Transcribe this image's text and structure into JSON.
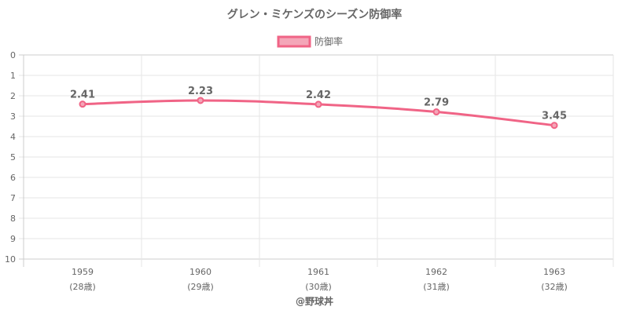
{
  "chart_data": {
    "type": "line",
    "title": "グレン・ミケンズのシーズン防御率",
    "legend": {
      "label": "防御率",
      "placement": "top-center"
    },
    "categories": [
      "1959",
      "1960",
      "1961",
      "1962",
      "1963"
    ],
    "sublabels": [
      "(28歳)",
      "(29歳)",
      "(30歳)",
      "(31歳)",
      "(32歳)"
    ],
    "series": [
      {
        "name": "防御率",
        "values": [
          2.41,
          2.23,
          2.42,
          2.79,
          3.45
        ]
      }
    ],
    "data_labels": [
      "2.41",
      "2.23",
      "2.42",
      "2.79",
      "3.45"
    ],
    "y_ticks": [
      "0",
      "1",
      "2",
      "3",
      "4",
      "5",
      "6",
      "7",
      "8",
      "9",
      "10"
    ],
    "ylim": [
      0,
      10
    ],
    "y_reversed": true,
    "grid": true
  },
  "footer": {
    "credit": "@野球丼"
  },
  "colors": {
    "line": "#f06486",
    "fill": "#f4a6b8",
    "grid": "#e6e6e6",
    "text": "#666666"
  }
}
